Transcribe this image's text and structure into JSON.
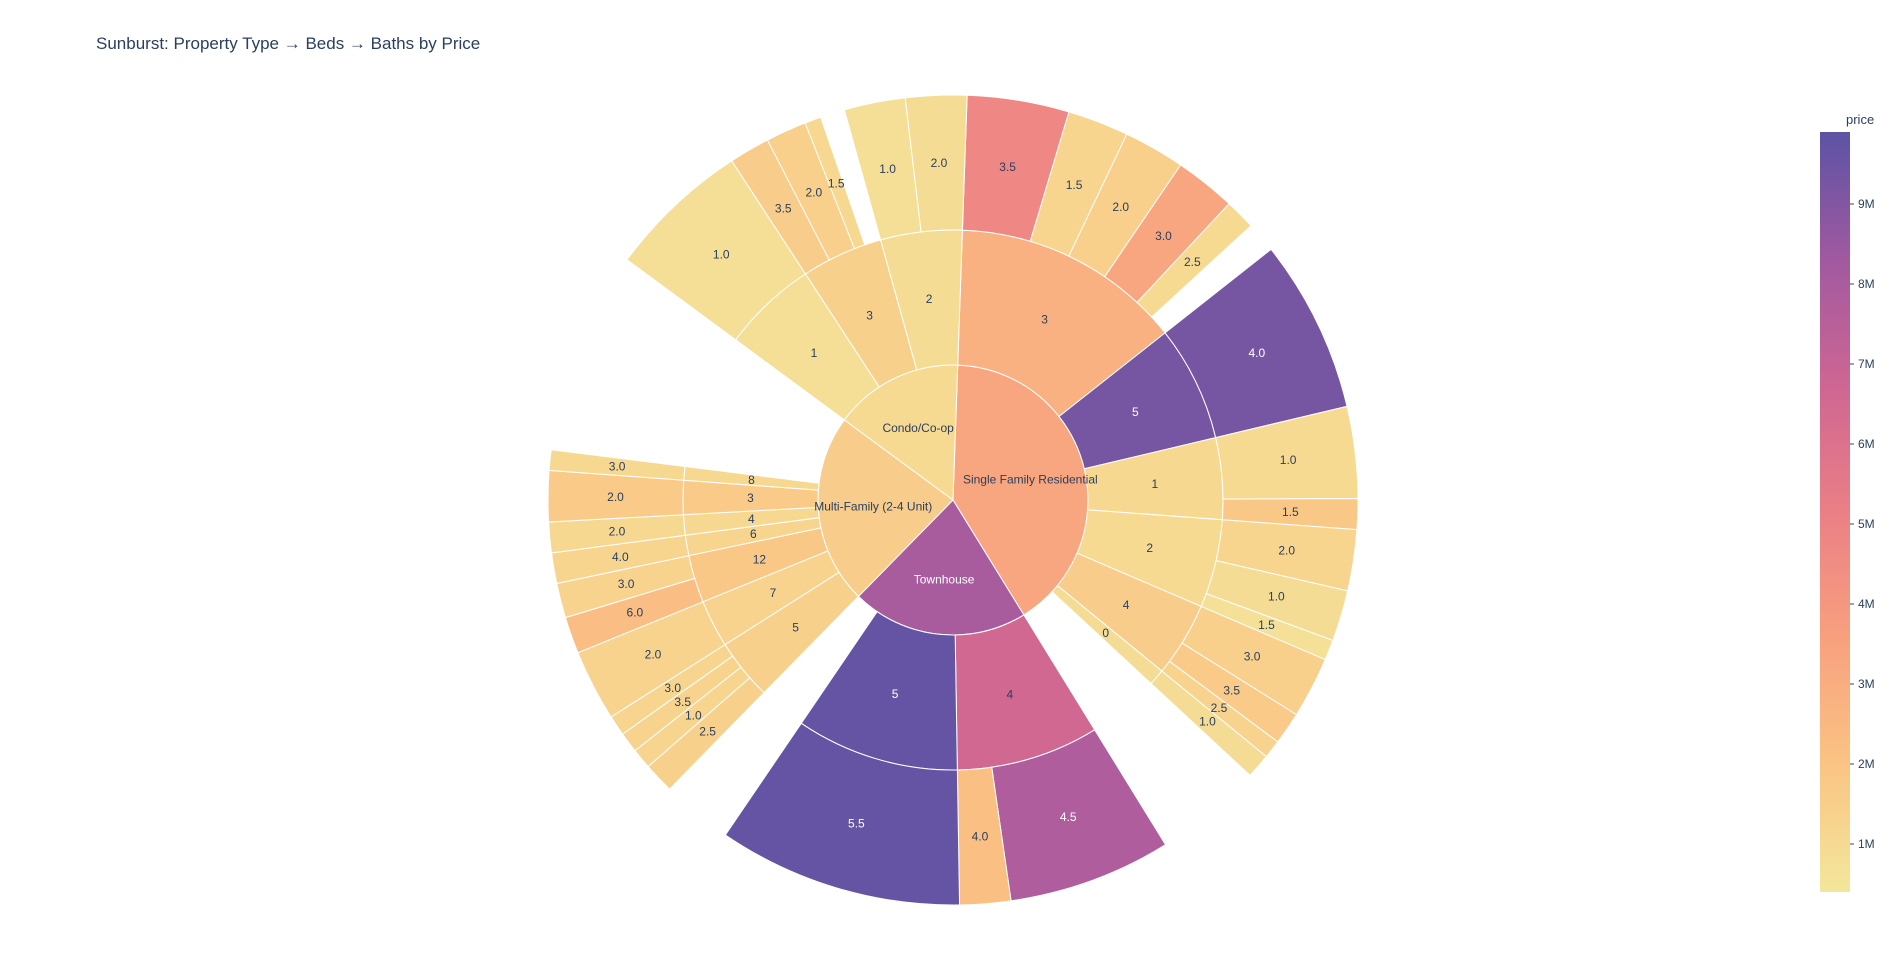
{
  "chart_data": {
    "type": "sunburst",
    "title": "Sunburst: Property Type → Beds → Baths by Price",
    "colorbar": {
      "title": "price",
      "range": [
        400000,
        9900000
      ],
      "ticks": [
        {
          "value": 1000000,
          "label": "1M"
        },
        {
          "value": 2000000,
          "label": "2M"
        },
        {
          "value": 3000000,
          "label": "3M"
        },
        {
          "value": 4000000,
          "label": "4M"
        },
        {
          "value": 5000000,
          "label": "5M"
        },
        {
          "value": 6000000,
          "label": "6M"
        },
        {
          "value": 7000000,
          "label": "7M"
        },
        {
          "value": 8000000,
          "label": "8M"
        },
        {
          "value": 9000000,
          "label": "9M"
        }
      ],
      "colors": [
        "#f3e79b",
        "#fac484",
        "#f8a07e",
        "#eb7f86",
        "#ce6693",
        "#a059a0",
        "#5c53a5"
      ]
    },
    "hierarchy": [
      {
        "label": "Single Family Residential",
        "value": 50,
        "price": 3300000,
        "children": [
          {
            "label": "3",
            "value": 17,
            "price": 2800000,
            "children": [
              {
                "label": "3.5",
                "value": 5,
                "price": 4700000
              },
              {
                "label": "1.5",
                "value": 3,
                "price": 1200000
              },
              {
                "label": "2.0",
                "value": 3,
                "price": 1500000
              },
              {
                "label": "3.0",
                "value": 3,
                "price": 3300000
              },
              {
                "label": "2.5",
                "value": 1.5,
                "price": 1000000
              }
            ]
          },
          {
            "label": "5",
            "value": 8.5,
            "price": 9300000,
            "children": [
              {
                "label": "4.0",
                "value": 8.5,
                "price": 9300000
              }
            ]
          },
          {
            "label": "1",
            "value": 6,
            "price": 1100000,
            "children": [
              {
                "label": "1.0",
                "value": 4.5,
                "price": 1000000
              },
              {
                "label": "1.5",
                "value": 1.5,
                "price": 1800000
              }
            ]
          },
          {
            "label": "2",
            "value": 6.5,
            "price": 1000000,
            "children": [
              {
                "label": "2.0",
                "value": 3,
                "price": 1200000
              },
              {
                "label": "1.0",
                "value": 2.5,
                "price": 900000
              },
              {
                "label": "1.5",
                "value": 1,
                "price": 700000
              }
            ]
          },
          {
            "label": "4",
            "value": 5.5,
            "price": 1600000,
            "children": [
              {
                "label": "3.0",
                "value": 3,
                "price": 1500000
              },
              {
                "label": "3.5",
                "value": 1.6,
                "price": 1700000
              },
              {
                "label": "2.5",
                "value": 0.9,
                "price": 1300000
              }
            ]
          },
          {
            "label": "0",
            "value": 1.2,
            "price": 900000,
            "children": [
              {
                "label": "1.0",
                "value": 1.2,
                "price": 900000
              }
            ]
          }
        ]
      },
      {
        "label": "Townhouse",
        "value": 26,
        "price": 8000000,
        "children": [
          {
            "label": "4",
            "value": 10.5,
            "price": 6600000,
            "children": [
              {
                "label": "4.5",
                "value": 8,
                "price": 7800000
              },
              {
                "label": "4.0",
                "value": 2.5,
                "price": 2200000
              }
            ]
          },
          {
            "label": "5",
            "value": 12,
            "price": 9700000,
            "children": [
              {
                "label": "5.5",
                "value": 12,
                "price": 9700000
              }
            ]
          }
        ]
      },
      {
        "label": "Multi-Family (2-4 Unit)",
        "value": 28,
        "price": 1600000,
        "children": [
          {
            "label": "5",
            "value": 4.5,
            "price": 1400000,
            "children": [
              {
                "label": "2.5",
                "value": 1.5,
                "price": 1400000
              },
              {
                "label": "1.0",
                "value": 1,
                "price": 1200000
              },
              {
                "label": "3.5",
                "value": 1,
                "price": 1300000
              },
              {
                "label": "3.0",
                "value": 1,
                "price": 1200000
              }
            ]
          },
          {
            "label": "7",
            "value": 3.5,
            "price": 1300000,
            "children": [
              {
                "label": "2.0",
                "value": 3.5,
                "price": 1300000
              }
            ]
          },
          {
            "label": "12",
            "value": 3.5,
            "price": 1800000,
            "children": [
              {
                "label": "6.0",
                "value": 1.8,
                "price": 2300000
              },
              {
                "label": "3.0",
                "value": 1.7,
                "price": 1300000
              }
            ]
          },
          {
            "label": "6",
            "value": 1.5,
            "price": 1200000,
            "children": [
              {
                "label": "4.0",
                "value": 1.5,
                "price": 1200000
              }
            ]
          },
          {
            "label": "4",
            "value": 1.5,
            "price": 1100000,
            "children": [
              {
                "label": "2.0",
                "value": 1.5,
                "price": 1100000
              }
            ]
          },
          {
            "label": "3",
            "value": 2.5,
            "price": 1700000,
            "children": [
              {
                "label": "2.0",
                "value": 2.5,
                "price": 1700000
              }
            ]
          },
          {
            "label": "8",
            "value": 1,
            "price": 1100000,
            "children": [
              {
                "label": "3.0",
                "value": 1,
                "price": 1100000
              }
            ]
          }
        ]
      },
      {
        "label": "Condo/Co-op",
        "value": 19,
        "price": 1000000,
        "children": [
          {
            "label": "1",
            "value": 7,
            "price": 800000,
            "children": [
              {
                "label": "1.0",
                "value": 7,
                "price": 800000
              }
            ]
          },
          {
            "label": "3",
            "value": 6,
            "price": 1400000,
            "children": [
              {
                "label": "3.5",
                "value": 2,
                "price": 1600000
              },
              {
                "label": "2.0",
                "value": 2,
                "price": 1500000
              },
              {
                "label": "1.5",
                "value": 0.8,
                "price": 1100000
              }
            ]
          },
          {
            "label": "2",
            "value": 6,
            "price": 900000,
            "children": [
              {
                "label": "1.0",
                "value": 3,
                "price": 800000
              },
              {
                "label": "2.0",
                "value": 3,
                "price": 900000
              }
            ]
          }
        ]
      }
    ]
  }
}
